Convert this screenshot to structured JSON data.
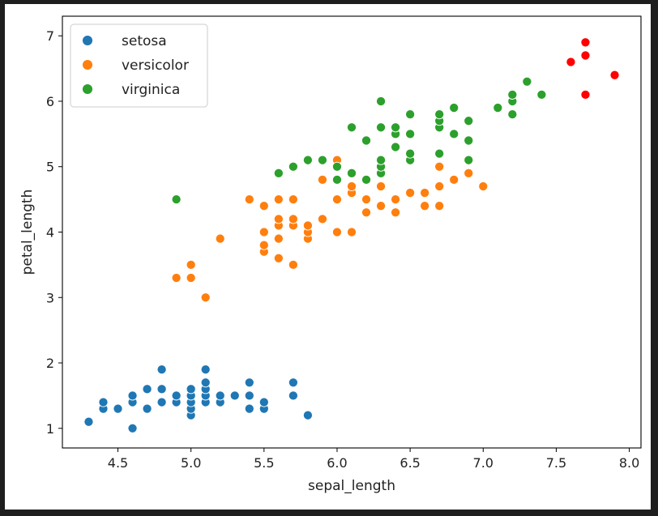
{
  "chart_data": {
    "type": "scatter",
    "xlabel": "sepal_length",
    "ylabel": "petal_length",
    "xlim": [
      4.12,
      8.08
    ],
    "ylim": [
      0.7,
      7.3
    ],
    "xticks": [
      "4.5",
      "5.0",
      "5.5",
      "6.0",
      "6.5",
      "7.0",
      "7.5",
      "8.0"
    ],
    "yticks": [
      "1",
      "2",
      "3",
      "4",
      "5",
      "6",
      "7"
    ],
    "legend_position": "top-left",
    "series": [
      {
        "name": "setosa",
        "color": "#1f77b4",
        "points": [
          [
            4.3,
            1.1
          ],
          [
            4.4,
            1.3
          ],
          [
            4.4,
            1.4
          ],
          [
            4.5,
            1.3
          ],
          [
            4.6,
            1.0
          ],
          [
            4.6,
            1.4
          ],
          [
            4.6,
            1.5
          ],
          [
            4.7,
            1.3
          ],
          [
            4.7,
            1.6
          ],
          [
            4.8,
            1.4
          ],
          [
            4.8,
            1.6
          ],
          [
            4.8,
            1.9
          ],
          [
            4.9,
            1.4
          ],
          [
            4.9,
            1.5
          ],
          [
            5.0,
            1.2
          ],
          [
            5.0,
            1.3
          ],
          [
            5.0,
            1.4
          ],
          [
            5.0,
            1.5
          ],
          [
            5.0,
            1.6
          ],
          [
            5.1,
            1.4
          ],
          [
            5.1,
            1.5
          ],
          [
            5.1,
            1.6
          ],
          [
            5.1,
            1.7
          ],
          [
            5.1,
            1.9
          ],
          [
            5.2,
            1.4
          ],
          [
            5.2,
            1.5
          ],
          [
            5.3,
            1.5
          ],
          [
            5.4,
            1.3
          ],
          [
            5.4,
            1.5
          ],
          [
            5.4,
            1.7
          ],
          [
            5.5,
            1.3
          ],
          [
            5.5,
            1.4
          ],
          [
            5.7,
            1.5
          ],
          [
            5.7,
            1.7
          ],
          [
            5.8,
            1.2
          ]
        ]
      },
      {
        "name": "versicolor",
        "color": "#ff7f0e",
        "points": [
          [
            4.9,
            3.3
          ],
          [
            5.0,
            3.3
          ],
          [
            5.0,
            3.5
          ],
          [
            5.1,
            3.0
          ],
          [
            5.2,
            3.9
          ],
          [
            5.4,
            4.5
          ],
          [
            5.5,
            3.7
          ],
          [
            5.5,
            3.8
          ],
          [
            5.5,
            4.0
          ],
          [
            5.5,
            4.4
          ],
          [
            5.6,
            3.6
          ],
          [
            5.6,
            3.9
          ],
          [
            5.6,
            4.1
          ],
          [
            5.6,
            4.2
          ],
          [
            5.6,
            4.5
          ],
          [
            5.7,
            3.5
          ],
          [
            5.7,
            4.1
          ],
          [
            5.7,
            4.2
          ],
          [
            5.7,
            4.5
          ],
          [
            5.8,
            3.9
          ],
          [
            5.8,
            4.0
          ],
          [
            5.8,
            4.1
          ],
          [
            5.9,
            4.2
          ],
          [
            5.9,
            4.8
          ],
          [
            6.0,
            4.0
          ],
          [
            6.0,
            4.5
          ],
          [
            6.0,
            5.1
          ],
          [
            6.1,
            4.0
          ],
          [
            6.1,
            4.6
          ],
          [
            6.1,
            4.7
          ],
          [
            6.2,
            4.3
          ],
          [
            6.2,
            4.5
          ],
          [
            6.3,
            4.4
          ],
          [
            6.3,
            4.7
          ],
          [
            6.3,
            4.9
          ],
          [
            6.4,
            4.3
          ],
          [
            6.4,
            4.5
          ],
          [
            6.5,
            4.6
          ],
          [
            6.6,
            4.4
          ],
          [
            6.6,
            4.6
          ],
          [
            6.7,
            4.4
          ],
          [
            6.7,
            4.7
          ],
          [
            6.7,
            5.0
          ],
          [
            6.8,
            4.8
          ],
          [
            6.9,
            4.9
          ],
          [
            7.0,
            4.7
          ]
        ]
      },
      {
        "name": "virginica",
        "color": "#2ca02c",
        "points": [
          [
            4.9,
            4.5
          ],
          [
            5.6,
            4.9
          ],
          [
            5.7,
            5.0
          ],
          [
            5.8,
            5.1
          ],
          [
            5.9,
            5.1
          ],
          [
            6.0,
            4.8
          ],
          [
            6.0,
            5.0
          ],
          [
            6.1,
            4.9
          ],
          [
            6.1,
            5.6
          ],
          [
            6.2,
            4.8
          ],
          [
            6.2,
            5.4
          ],
          [
            6.3,
            4.9
          ],
          [
            6.3,
            5.0
          ],
          [
            6.3,
            5.1
          ],
          [
            6.3,
            5.6
          ],
          [
            6.3,
            6.0
          ],
          [
            6.4,
            5.3
          ],
          [
            6.4,
            5.5
          ],
          [
            6.4,
            5.6
          ],
          [
            6.5,
            5.1
          ],
          [
            6.5,
            5.2
          ],
          [
            6.5,
            5.5
          ],
          [
            6.5,
            5.8
          ],
          [
            6.7,
            5.2
          ],
          [
            6.7,
            5.6
          ],
          [
            6.7,
            5.7
          ],
          [
            6.7,
            5.8
          ],
          [
            6.8,
            5.5
          ],
          [
            6.8,
            5.9
          ],
          [
            6.9,
            5.1
          ],
          [
            6.9,
            5.4
          ],
          [
            6.9,
            5.7
          ],
          [
            7.1,
            5.9
          ],
          [
            7.2,
            5.8
          ],
          [
            7.2,
            6.0
          ],
          [
            7.2,
            6.1
          ],
          [
            7.3,
            6.3
          ],
          [
            7.4,
            6.1
          ]
        ]
      },
      {
        "color": "#ff0000",
        "points": [
          [
            7.6,
            6.6
          ],
          [
            7.7,
            6.1
          ],
          [
            7.7,
            6.7
          ],
          [
            7.7,
            6.9
          ],
          [
            7.9,
            6.4
          ]
        ]
      }
    ]
  }
}
